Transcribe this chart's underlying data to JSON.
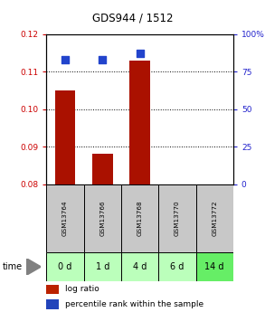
{
  "title": "GDS944 / 1512",
  "categories": [
    "GSM13764",
    "GSM13766",
    "GSM13768",
    "GSM13770",
    "GSM13772"
  ],
  "time_labels": [
    "0 d",
    "1 d",
    "4 d",
    "6 d",
    "14 d"
  ],
  "log_ratio": [
    0.105,
    0.088,
    0.113,
    null,
    null
  ],
  "percentile_rank": [
    83,
    83,
    87,
    null,
    null
  ],
  "ylim_left": [
    0.08,
    0.12
  ],
  "ylim_right": [
    0,
    100
  ],
  "yticks_left": [
    0.08,
    0.09,
    0.1,
    0.11,
    0.12
  ],
  "ytick_labels_left": [
    "0.08",
    "0.09",
    "0.10",
    "0.11",
    "0.12"
  ],
  "yticks_right": [
    0,
    25,
    50,
    75,
    100
  ],
  "ytick_labels_right": [
    "0",
    "25",
    "50",
    "75",
    "100%"
  ],
  "bar_color": "#aa1100",
  "dot_color": "#2244cc",
  "bg_plot": "#ffffff",
  "bg_gsm": "#c8c8c8",
  "bg_time_light": "#bbffbb",
  "bg_time_dark": "#66ee66",
  "left_axis_color": "#cc0000",
  "right_axis_color": "#2222cc",
  "legend_bar_color": "#bb2200",
  "legend_dot_color": "#2244bb",
  "bar_width": 0.55,
  "dot_size": 30,
  "gridline_ticks": [
    0.09,
    0.1,
    0.11
  ],
  "time_colors": [
    "#bbffbb",
    "#bbffbb",
    "#bbffbb",
    "#bbffbb",
    "#66ee66"
  ]
}
